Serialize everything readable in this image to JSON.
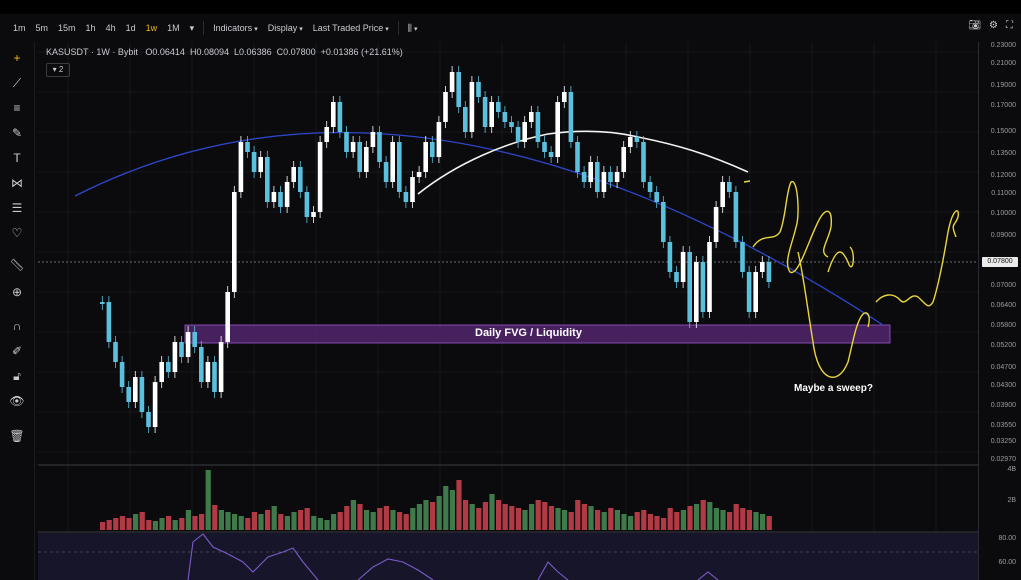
{
  "toolbar": {
    "timeframes": [
      "1m",
      "5m",
      "15m",
      "1h",
      "4h",
      "1d",
      "1w",
      "1M"
    ],
    "active_timeframe": "1w",
    "indicators_label": "Indicators",
    "display_label": "Display",
    "price_type_label": "Last Traded Price",
    "right_icons": [
      "camera-icon",
      "gear-icon",
      "fullscreen-icon"
    ]
  },
  "left_tools": [
    "crosshair-icon",
    "trendline-icon",
    "horizontal-lines-icon",
    "brush-icon",
    "text-icon",
    "pattern-icon",
    "fib-icon",
    "heart-icon",
    "ruler-icon",
    "zoom-icon",
    "magnet-icon",
    "lock-draw-icon",
    "lock-icon",
    "eye-icon",
    "trash-icon"
  ],
  "legend": {
    "symbol": "KASUSDT",
    "interval": "1W",
    "exchange": "Bybit",
    "open_label": "O",
    "open": "0.06414",
    "high_label": "H",
    "high": "0.08094",
    "low_label": "L",
    "low": "0.06386",
    "close_label": "C",
    "close": "0.07800",
    "change": "+0.01386 (+21.61%)"
  },
  "layer_badge": "2",
  "price_scale": [
    "0.23000",
    "0.21000",
    "0.19000",
    "0.17000",
    "0.15000",
    "0.13500",
    "0.12000",
    "0.11000",
    "0.10000",
    "0.09000",
    "0.07800",
    "0.07000",
    "0.06400",
    "0.05800",
    "0.05200",
    "0.04700",
    "0.04300",
    "0.03900",
    "0.03550",
    "0.03250",
    "0.02970"
  ],
  "current_price": "0.07800",
  "volume_scale": [
    "4B",
    "2B"
  ],
  "rsi_scale": [
    "80.00",
    "60.00"
  ],
  "annotations": {
    "fvg_label": "Daily FVG / Liquidity",
    "sweep_note": "Maybe a sweep?"
  },
  "colors": {
    "up": "#ffffff",
    "down": "#5bc0de",
    "vol_up": "#3f7a4a",
    "vol_down": "#b13a45",
    "fvg": "#5b2a7a",
    "curve": "#2d46c9",
    "ma": "#f2f2f2",
    "drawing": "#e8d63a"
  }
}
